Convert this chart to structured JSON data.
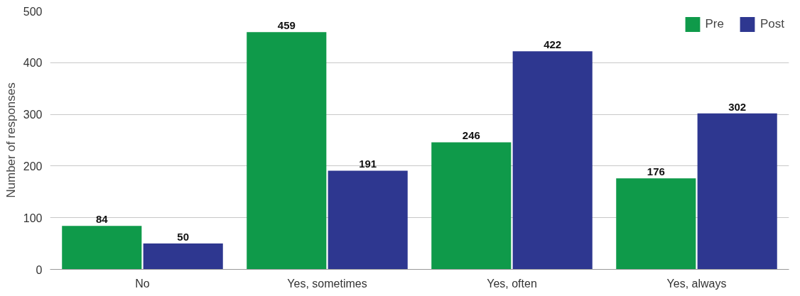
{
  "chart_data": {
    "type": "bar",
    "ylabel": "Number of responses",
    "categories": [
      "No",
      "Yes, sometimes",
      "Yes, often",
      "Yes, always"
    ],
    "series": [
      {
        "name": "Pre",
        "color": "#0f9a4a",
        "values": [
          84,
          459,
          246,
          176
        ]
      },
      {
        "name": "Post",
        "color": "#2e3790",
        "values": [
          50,
          191,
          422,
          302
        ]
      }
    ],
    "ylim": [
      0,
      500
    ],
    "yticks": [
      0,
      100,
      200,
      300,
      400,
      500
    ],
    "grid": "y",
    "legend": "top right",
    "data_labels": true
  }
}
